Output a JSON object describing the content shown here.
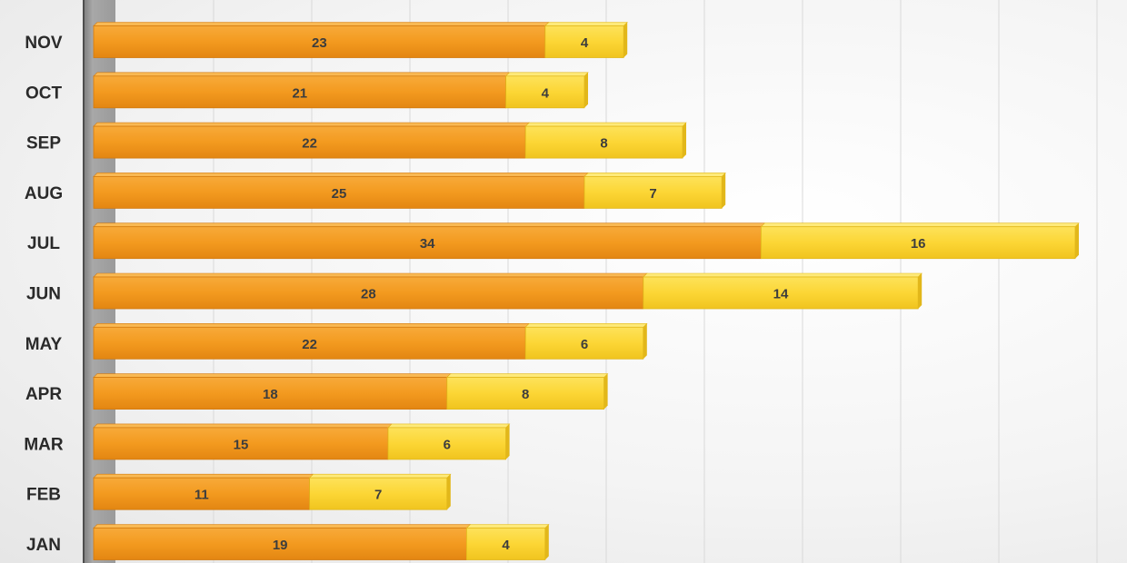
{
  "chart_data": {
    "type": "bar",
    "orientation": "horizontal",
    "stacked": true,
    "categories": [
      "NOV",
      "OCT",
      "SEP",
      "AUG",
      "JUL",
      "JUN",
      "MAY",
      "APR",
      "MAR",
      "FEB",
      "JAN"
    ],
    "series": [
      {
        "values": [
          23,
          21,
          22,
          25,
          34,
          28,
          22,
          18,
          15,
          11,
          19
        ],
        "color": "#f39a1f"
      },
      {
        "values": [
          4,
          4,
          8,
          7,
          16,
          14,
          6,
          8,
          6,
          7,
          4
        ],
        "color": "#fcd635"
      }
    ],
    "xlim": [
      0,
      50
    ],
    "grid": true,
    "legend": "none"
  }
}
